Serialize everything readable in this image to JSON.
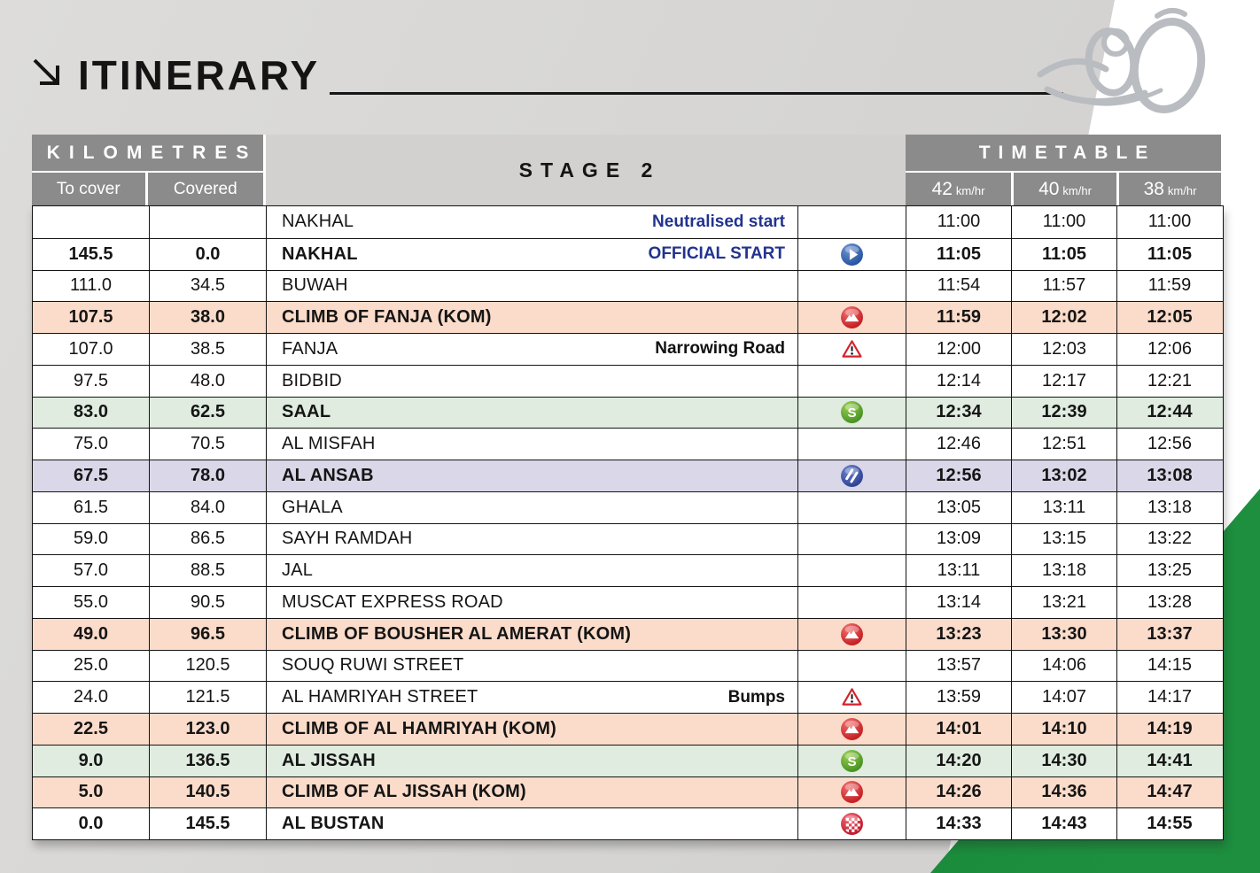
{
  "page": {
    "title_label": "ITINERARY"
  },
  "header": {
    "kilometres_label": "KILOMETRES",
    "to_cover_label": "To cover",
    "covered_label": "Covered",
    "stage_label": "STAGE 2",
    "timetable_label": "TIMETABLE",
    "speed_columns": [
      {
        "speed": "42",
        "unit": "km/hr"
      },
      {
        "speed": "40",
        "unit": "km/hr"
      },
      {
        "speed": "38",
        "unit": "km/hr"
      }
    ]
  },
  "colors": {
    "header_gray": "#8b8b8b",
    "stage_band_gray": "#d2d1d0",
    "accent_blue_text": "#22338f",
    "green_corner": "#147f33",
    "row_highlights": {
      "none": "#ffffff",
      "climb": "#fbdcca",
      "sprint": "#dfecdf",
      "feed": "#dad7e8"
    }
  },
  "table": {
    "rows": [
      {
        "to_cover": "",
        "covered": "",
        "location": "NAKHAL",
        "note": "Neutralised start",
        "note_style": "blue",
        "icon": null,
        "highlight": "none",
        "bold": false,
        "times": [
          "11:00",
          "11:00",
          "11:00"
        ]
      },
      {
        "to_cover": "145.5",
        "covered": "0.0",
        "location": "NAKHAL",
        "note": "OFFICIAL START",
        "note_style": "blue",
        "icon": "official-start-icon",
        "highlight": "none",
        "bold": true,
        "times": [
          "11:05",
          "11:05",
          "11:05"
        ]
      },
      {
        "to_cover": "111.0",
        "covered": "34.5",
        "location": "BUWAH",
        "note": "",
        "note_style": null,
        "icon": null,
        "highlight": "none",
        "bold": false,
        "times": [
          "11:54",
          "11:57",
          "11:59"
        ]
      },
      {
        "to_cover": "107.5",
        "covered": "38.0",
        "location": "CLIMB OF FANJA (KOM)",
        "note": "",
        "note_style": null,
        "icon": "kom-climb-icon",
        "highlight": "climb",
        "bold": true,
        "times": [
          "11:59",
          "12:02",
          "12:05"
        ]
      },
      {
        "to_cover": "107.0",
        "covered": "38.5",
        "location": "FANJA",
        "note": "Narrowing Road",
        "note_style": "plain",
        "icon": "hazard-warning-icon",
        "highlight": "none",
        "bold": false,
        "times": [
          "12:00",
          "12:03",
          "12:06"
        ]
      },
      {
        "to_cover": "97.5",
        "covered": "48.0",
        "location": "BIDBID",
        "note": "",
        "note_style": null,
        "icon": null,
        "highlight": "none",
        "bold": false,
        "times": [
          "12:14",
          "12:17",
          "12:21"
        ]
      },
      {
        "to_cover": "83.0",
        "covered": "62.5",
        "location": "SAAL",
        "note": "",
        "note_style": null,
        "icon": "sprint-icon",
        "highlight": "sprint",
        "bold": true,
        "times": [
          "12:34",
          "12:39",
          "12:44"
        ]
      },
      {
        "to_cover": "75.0",
        "covered": "70.5",
        "location": "AL MISFAH",
        "note": "",
        "note_style": null,
        "icon": null,
        "highlight": "none",
        "bold": false,
        "times": [
          "12:46",
          "12:51",
          "12:56"
        ]
      },
      {
        "to_cover": "67.5",
        "covered": "78.0",
        "location": "AL ANSAB",
        "note": "",
        "note_style": null,
        "icon": "feed-zone-icon",
        "highlight": "feed",
        "bold": true,
        "times": [
          "12:56",
          "13:02",
          "13:08"
        ]
      },
      {
        "to_cover": "61.5",
        "covered": "84.0",
        "location": "GHALA",
        "note": "",
        "note_style": null,
        "icon": null,
        "highlight": "none",
        "bold": false,
        "times": [
          "13:05",
          "13:11",
          "13:18"
        ]
      },
      {
        "to_cover": "59.0",
        "covered": "86.5",
        "location": "SAYH RAMDAH",
        "note": "",
        "note_style": null,
        "icon": null,
        "highlight": "none",
        "bold": false,
        "times": [
          "13:09",
          "13:15",
          "13:22"
        ]
      },
      {
        "to_cover": "57.0",
        "covered": "88.5",
        "location": "JAL",
        "note": "",
        "note_style": null,
        "icon": null,
        "highlight": "none",
        "bold": false,
        "times": [
          "13:11",
          "13:18",
          "13:25"
        ]
      },
      {
        "to_cover": "55.0",
        "covered": "90.5",
        "location": "MUSCAT EXPRESS ROAD",
        "note": "",
        "note_style": null,
        "icon": null,
        "highlight": "none",
        "bold": false,
        "times": [
          "13:14",
          "13:21",
          "13:28"
        ]
      },
      {
        "to_cover": "49.0",
        "covered": "96.5",
        "location": "CLIMB OF BOUSHER AL AMERAT (KOM)",
        "note": "",
        "note_style": null,
        "icon": "kom-climb-icon",
        "highlight": "climb",
        "bold": true,
        "times": [
          "13:23",
          "13:30",
          "13:37"
        ]
      },
      {
        "to_cover": "25.0",
        "covered": "120.5",
        "location": "SOUQ RUWI STREET",
        "note": "",
        "note_style": null,
        "icon": null,
        "highlight": "none",
        "bold": false,
        "times": [
          "13:57",
          "14:06",
          "14:15"
        ]
      },
      {
        "to_cover": "24.0",
        "covered": "121.5",
        "location": "AL HAMRIYAH STREET",
        "note": "Bumps",
        "note_style": "plain",
        "icon": "hazard-warning-icon",
        "highlight": "none",
        "bold": false,
        "times": [
          "13:59",
          "14:07",
          "14:17"
        ]
      },
      {
        "to_cover": "22.5",
        "covered": "123.0",
        "location": "CLIMB OF AL HAMRIYAH (KOM)",
        "note": "",
        "note_style": null,
        "icon": "kom-climb-icon",
        "highlight": "climb",
        "bold": true,
        "times": [
          "14:01",
          "14:10",
          "14:19"
        ]
      },
      {
        "to_cover": "9.0",
        "covered": "136.5",
        "location": "AL JISSAH",
        "note": "",
        "note_style": null,
        "icon": "sprint-icon",
        "highlight": "sprint",
        "bold": true,
        "times": [
          "14:20",
          "14:30",
          "14:41"
        ]
      },
      {
        "to_cover": "5.0",
        "covered": "140.5",
        "location": "CLIMB OF AL JISSAH (KOM)",
        "note": "",
        "note_style": null,
        "icon": "kom-climb-icon",
        "highlight": "climb",
        "bold": true,
        "times": [
          "14:26",
          "14:36",
          "14:47"
        ]
      },
      {
        "to_cover": "0.0",
        "covered": "145.5",
        "location": "AL BUSTAN",
        "note": "",
        "note_style": null,
        "icon": "finish-icon",
        "highlight": "none",
        "bold": true,
        "times": [
          "14:33",
          "14:43",
          "14:55"
        ]
      }
    ]
  }
}
